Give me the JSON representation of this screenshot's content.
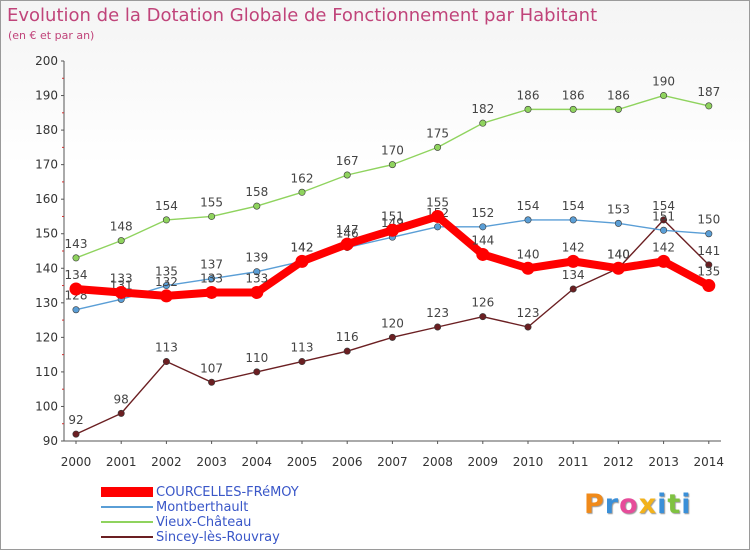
{
  "header": {
    "title": "Evolution de la Dotation Globale de Fonctionnement par Habitant",
    "subtitle": "(en € et par an)"
  },
  "chart_data": {
    "type": "line",
    "title": "Evolution de la Dotation Globale de Fonctionnement par Habitant",
    "subtitle": "(en € et par an)",
    "xlabel": "",
    "ylabel": "",
    "ylim": [
      90,
      200
    ],
    "y_ticks": [
      90,
      100,
      110,
      120,
      130,
      140,
      150,
      160,
      170,
      180,
      190,
      200
    ],
    "grid": false,
    "legend_position": "bottom-left",
    "categories": [
      "2000",
      "2001",
      "2002",
      "2003",
      "2004",
      "2005",
      "2006",
      "2007",
      "2008",
      "2009",
      "2010",
      "2011",
      "2012",
      "2013",
      "2014"
    ],
    "series": [
      {
        "name": "Sincey-lès-Rouvray",
        "color": "#6b1f22",
        "style": "thin",
        "values": [
          92,
          98,
          113,
          107,
          110,
          113,
          116,
          120,
          123,
          126,
          123,
          134,
          140,
          154,
          141
        ]
      },
      {
        "name": "Vieux-Château",
        "color": "#8fd35e",
        "style": "thin",
        "values": [
          143,
          148,
          154,
          155,
          158,
          162,
          167,
          170,
          175,
          182,
          186,
          186,
          186,
          190,
          187
        ]
      },
      {
        "name": "Montberthault",
        "color": "#5a9ed6",
        "style": "thin",
        "values": [
          128,
          131,
          135,
          137,
          139,
          142,
          146,
          149,
          152,
          152,
          154,
          154,
          153,
          151,
          150
        ]
      },
      {
        "name": "COURCELLES-FRéMOY",
        "color": "#ff0000",
        "style": "thick",
        "values": [
          134,
          133,
          132,
          133,
          133,
          142,
          147,
          151,
          155,
          144,
          140,
          142,
          140,
          142,
          135
        ]
      }
    ]
  },
  "legend": [
    {
      "name": "COURCELLES-FRéMOY",
      "color": "#ff0000",
      "width": 10
    },
    {
      "name": "Montberthault",
      "color": "#5a9ed6",
      "width": 2
    },
    {
      "name": "Vieux-Château",
      "color": "#8fd35e",
      "width": 2
    },
    {
      "name": "Sincey-lès-Rouvray",
      "color": "#6b1f22",
      "width": 2
    }
  ],
  "logo": {
    "letters": [
      "P",
      "r",
      "o",
      "x",
      "i",
      "t",
      "i"
    ],
    "colors": [
      "#f08a1a",
      "#3a8fd8",
      "#e64c9a",
      "#f2b21c",
      "#3a8fd8",
      "#7fc241",
      "#3a8fd8"
    ]
  }
}
